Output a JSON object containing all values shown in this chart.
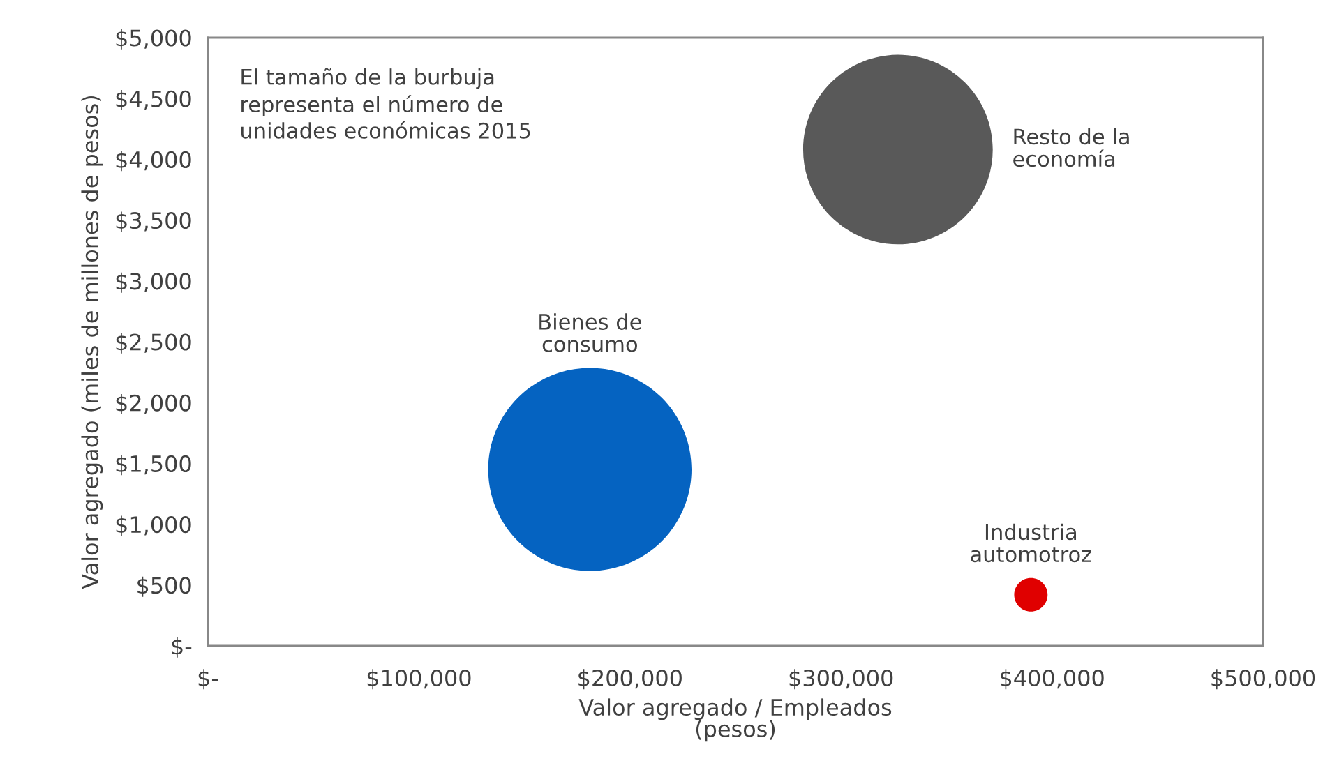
{
  "chart_data": {
    "type": "bubble",
    "xlabel": "Valor agregado / Empleados\n(pesos)",
    "ylabel": "Valor agregado (miles de millones de pesos)",
    "annotations": [
      "El tamaño de la burbuja\nrepresenta el número de\nunidades económicas 2015"
    ],
    "series": [
      {
        "name": "Bienes de\nconsumo",
        "color": "#0563c1",
        "x": [
          181000
        ],
        "values": [
          1450
        ],
        "sizes": [
          1
        ]
      },
      {
        "name": "Resto de la\neconomía",
        "color": "#595959",
        "x": [
          327000
        ],
        "values": [
          4080
        ],
        "sizes": [
          0.87
        ]
      },
      {
        "name": "Industria\nautomotroz",
        "color": "#e00000",
        "x": [
          390000
        ],
        "values": [
          420
        ],
        "sizes": [
          0.027
        ]
      }
    ],
    "xlim": [
      0,
      500000
    ],
    "xticks": [
      {
        "value": 0,
        "label": "$-"
      },
      {
        "value": 100000,
        "label": "$100,000"
      },
      {
        "value": 200000,
        "label": "$200,000"
      },
      {
        "value": 300000,
        "label": "$300,000"
      },
      {
        "value": 400000,
        "label": "$400,000"
      },
      {
        "value": 500000,
        "label": "$500,000"
      }
    ],
    "ylim": [
      0,
      5000
    ],
    "yticks": [
      {
        "value": 0,
        "label": "$-"
      },
      {
        "value": 500,
        "label": "$500"
      },
      {
        "value": 1000,
        "label": "$1,000"
      },
      {
        "value": 1500,
        "label": "$1,500"
      },
      {
        "value": 2000,
        "label": "$2,000"
      },
      {
        "value": 2500,
        "label": "$2,500"
      },
      {
        "value": 3000,
        "label": "$3,000"
      },
      {
        "value": 3500,
        "label": "$3,500"
      },
      {
        "value": 4000,
        "label": "$4,000"
      },
      {
        "value": 4500,
        "label": "$4,500"
      },
      {
        "value": 5000,
        "label": "$5,000"
      }
    ]
  }
}
